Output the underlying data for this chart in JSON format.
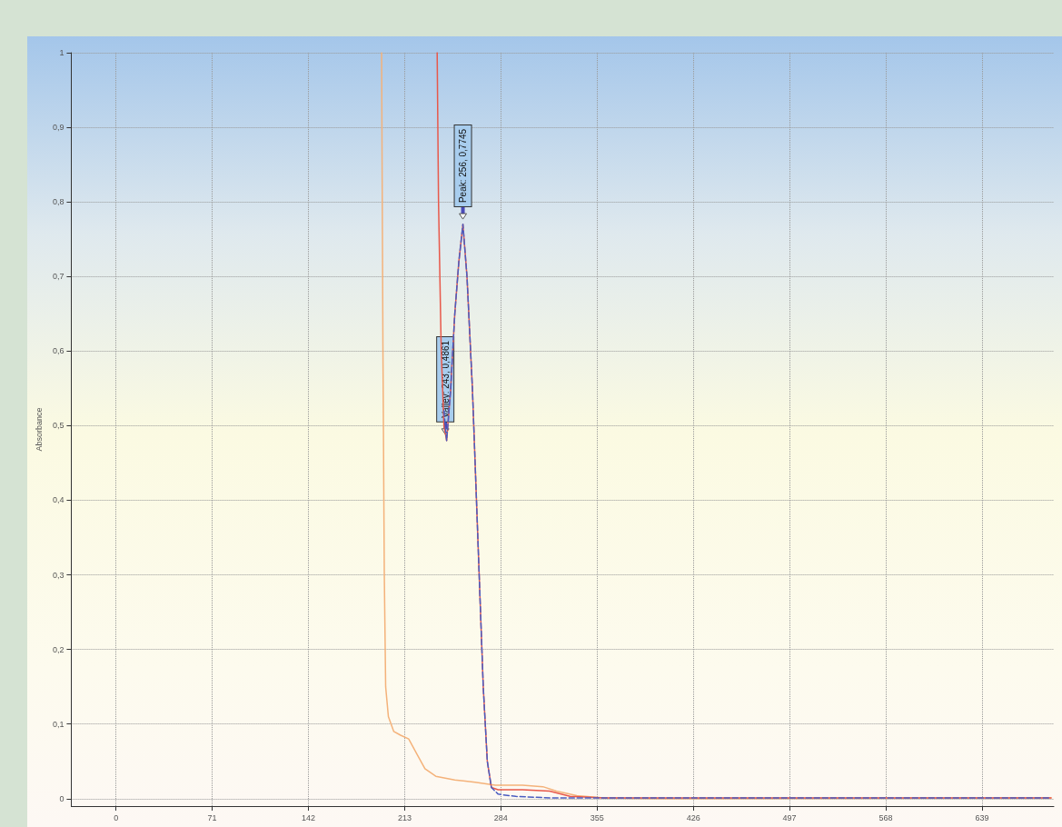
{
  "chart_data": {
    "type": "line",
    "ylabel": "Absorbance",
    "grid": true,
    "marker": "none",
    "xlim": [
      -33,
      692
    ],
    "xticks": [
      0,
      71,
      142,
      213,
      284,
      355,
      426,
      497,
      568,
      639
    ],
    "ylim": [
      -0.01,
      1
    ],
    "yticks": [
      {
        "value": 0,
        "label": "0"
      },
      {
        "value": 0.1,
        "label": "0,1"
      },
      {
        "value": 0.2,
        "label": "0,2"
      },
      {
        "value": 0.3,
        "label": "0,3"
      },
      {
        "value": 0.4,
        "label": "0,4"
      },
      {
        "value": 0.5,
        "label": "0,5"
      },
      {
        "value": 0.6,
        "label": "0,6"
      },
      {
        "value": 0.7,
        "label": "0,7"
      },
      {
        "value": 0.8,
        "label": "0,8"
      },
      {
        "value": 0.9,
        "label": "0,9"
      },
      {
        "value": 1,
        "label": "1"
      }
    ],
    "series": [
      {
        "color": "#f4b27a",
        "x": [
          196,
          197,
          198,
          199,
          201,
          205,
          210,
          216,
          222,
          228,
          236,
          250,
          265,
          280,
          300,
          315,
          325,
          340,
          360,
          400,
          690
        ],
        "values": [
          1,
          0.6,
          0.3,
          0.15,
          0.11,
          0.09,
          0.085,
          0.08,
          0.06,
          0.04,
          0.03,
          0.025,
          0.022,
          0.018,
          0.018,
          0.016,
          0.01,
          0.004,
          0.001,
          0,
          0.001
        ]
      },
      {
        "color": "#e8584a",
        "x": [
          237,
          238,
          240,
          242,
          244,
          247,
          250,
          253,
          256,
          259,
          263,
          267,
          271,
          274,
          277,
          282,
          300,
          320,
          335,
          360,
          690
        ],
        "values": [
          1,
          0.8,
          0.6,
          0.5,
          0.48,
          0.55,
          0.65,
          0.72,
          0.77,
          0.7,
          0.55,
          0.35,
          0.15,
          0.05,
          0.015,
          0.012,
          0.012,
          0.01,
          0.003,
          0.001,
          0.001
        ]
      },
      {
        "color": "#4a5cc0",
        "line_style": "dashed",
        "x": [
          242,
          244,
          247,
          250,
          253,
          256,
          259,
          263,
          267,
          271,
          274,
          277,
          282,
          295,
          320,
          690
        ],
        "values": [
          0.52,
          0.48,
          0.55,
          0.65,
          0.72,
          0.77,
          0.7,
          0.55,
          0.35,
          0.15,
          0.05,
          0.015,
          0.006,
          0.003,
          0.001,
          0.001
        ]
      }
    ],
    "annotations": [
      {
        "text": "Peak: 256, 0,7745",
        "x": 256,
        "y": 0.7745
      },
      {
        "text": "Valley: 243, 0,4861",
        "x": 243,
        "y": 0.4861
      }
    ]
  }
}
